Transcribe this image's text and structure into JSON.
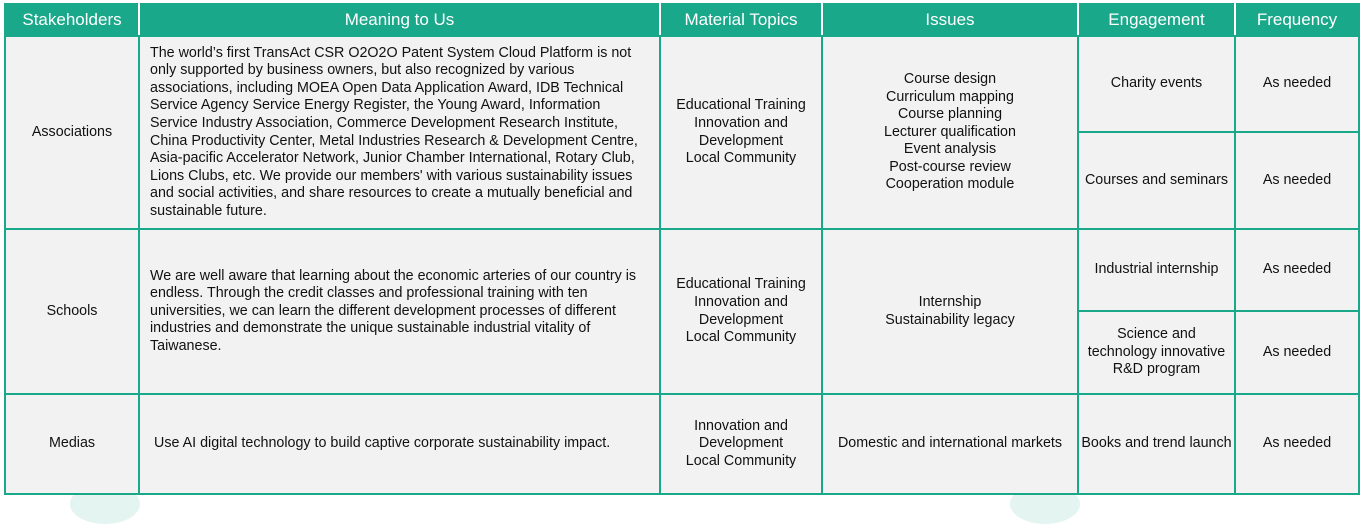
{
  "headers": {
    "stakeholders": "Stakeholders",
    "meaning": "Meaning to Us",
    "topics": "Material Topics",
    "issues": "Issues",
    "engagement": "Engagement",
    "frequency": "Frequency"
  },
  "rows": [
    {
      "stakeholder": "Associations",
      "meaning": "The world’s first TransAct CSR O2O2O Patent System Cloud Platform is not only supported by business owners, but also recognized by various associations, including MOEA Open Data Application Award, IDB Technical Service Agency Service Energy Register, the Young Award, Information Service Industry Association, Commerce Development Research Institute, China Productivity Center, Metal Industries Research & Development Centre, Asia-pacific Accelerator Network, Junior Chamber International, Rotary Club, Lions Clubs, etc. We provide our members' with various sustainability issues and social activities, and share resources to create a mutually beneficial and sustainable future.",
      "topics": [
        "Educational Training",
        "Innovation and Development",
        "Local Community"
      ],
      "issues": [
        "Course design",
        "Curriculum mapping",
        "Course planning",
        "Lecturer qualification",
        "Event analysis",
        "Post-course review",
        "Cooperation module"
      ],
      "engagements": [
        {
          "name": "Charity events",
          "frequency": "As needed"
        },
        {
          "name": "Courses and seminars",
          "frequency": "As needed"
        }
      ]
    },
    {
      "stakeholder": "Schools",
      "meaning": "We are well aware that learning about the economic arteries of our country is endless. Through the credit classes and professional training with ten universities, we can learn the different development processes of different industries and demonstrate the unique sustainable industrial vitality of Taiwanese.",
      "topics": [
        "Educational Training",
        "Innovation and Development",
        "Local Community"
      ],
      "issues": [
        "Internship",
        "Sustainability legacy"
      ],
      "engagements": [
        {
          "name": "Industrial internship",
          "frequency": "As needed"
        },
        {
          "name": "Science and technology innovative R&D program",
          "frequency": "As needed"
        }
      ]
    },
    {
      "stakeholder": "Medias",
      "meaning": "Use AI digital technology to build captive corporate sustainability impact.",
      "topics": [
        "Innovation and Development",
        "Local Community"
      ],
      "issues": [
        "Domestic and international markets"
      ],
      "engagements": [
        {
          "name": "Books and trend launch",
          "frequency": "As needed"
        }
      ]
    }
  ],
  "colors": {
    "header_bg": "#1aa88a",
    "border": "#1aa88a",
    "cell_bg": "#f2f2f2"
  }
}
